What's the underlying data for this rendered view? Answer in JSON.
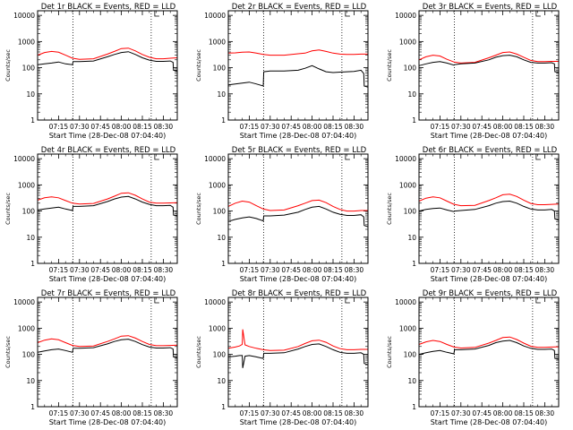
{
  "chart_data": {
    "type": "line",
    "common": {
      "ylabel": "Counts/sec",
      "xlabel": "Start Time (28-Dec-08 07:04:40)",
      "xticklabels": [
        "07:15",
        "07:30",
        "07:45",
        "08:00",
        "08:15",
        "08:30"
      ],
      "xticks_min": [
        15,
        30,
        45,
        60,
        75,
        90
      ],
      "xlim_min": [
        0,
        100
      ],
      "ylim": [
        1,
        15000
      ],
      "yscale": "log",
      "yticklabels": [
        "1",
        "10",
        "100",
        "1000",
        "10000"
      ],
      "series_colors": {
        "events": "#000000",
        "lld": "#ff0000"
      },
      "dotted_marker_min": [
        25.33,
        81.33
      ]
    },
    "panels": [
      {
        "title": "Det 1r BLACK = Events, RED = LLD",
        "series": [
          {
            "x": [
              0,
              5,
              10,
              15,
              20,
              25,
              25.4,
              30,
              40,
              50,
              55,
              60,
              65,
              70,
              75,
              80,
              85,
              90,
              95,
              97,
              97.3,
              100
            ],
            "values": [
              130,
              140,
              150,
              165,
              140,
              130,
              170,
              170,
              180,
              260,
              320,
              380,
              410,
              320,
              240,
              195,
              175,
              175,
              180,
              160,
              80,
              75
            ]
          },
          {
            "x": [
              0,
              5,
              10,
              15,
              20,
              25,
              30,
              40,
              50,
              55,
              60,
              65,
              70,
              75,
              80,
              85,
              90,
              95,
              100
            ],
            "values": [
              300,
              380,
              420,
              390,
              300,
              230,
              210,
              220,
              330,
              420,
              540,
              560,
              440,
              320,
              250,
              220,
              220,
              230,
              240
            ]
          }
        ]
      },
      {
        "title": "Det 2r BLACK = Events, RED = LLD",
        "series": [
          {
            "x": [
              0,
              5,
              10,
              15,
              20,
              25,
              25.4,
              30,
              40,
              50,
              55,
              60,
              65,
              70,
              75,
              80,
              85,
              90,
              95,
              97,
              97.3,
              100
            ],
            "values": [
              22,
              24,
              26,
              28,
              24,
              20,
              70,
              75,
              75,
              80,
              95,
              120,
              90,
              70,
              65,
              68,
              70,
              72,
              80,
              60,
              20,
              18
            ]
          },
          {
            "x": [
              0,
              5,
              10,
              15,
              20,
              25,
              30,
              40,
              50,
              55,
              60,
              65,
              70,
              75,
              80,
              85,
              90,
              95,
              100
            ],
            "values": [
              360,
              370,
              390,
              400,
              360,
              320,
              300,
              300,
              340,
              360,
              440,
              480,
              420,
              360,
              330,
              320,
              320,
              330,
              330
            ]
          }
        ]
      },
      {
        "title": "Det 3r BLACK = Events, RED = LLD",
        "series": [
          {
            "x": [
              0,
              5,
              10,
              15,
              20,
              25,
              25.4,
              30,
              40,
              50,
              55,
              60,
              65,
              70,
              75,
              80,
              85,
              90,
              95,
              97,
              97.3,
              100
            ],
            "values": [
              120,
              140,
              160,
              170,
              150,
              125,
              130,
              140,
              150,
              200,
              250,
              290,
              300,
              260,
              200,
              160,
              150,
              150,
              155,
              140,
              70,
              65
            ]
          },
          {
            "x": [
              0,
              5,
              10,
              15,
              20,
              25,
              30,
              40,
              50,
              55,
              60,
              65,
              70,
              75,
              80,
              85,
              90,
              95,
              100
            ],
            "values": [
              200,
              260,
              300,
              280,
              210,
              165,
              150,
              160,
              240,
              300,
              380,
              400,
              330,
              250,
              190,
              170,
              170,
              175,
              175
            ]
          }
        ]
      },
      {
        "title": "Det 4r BLACK = Events, RED = LLD",
        "series": [
          {
            "x": [
              0,
              5,
              10,
              15,
              20,
              25,
              25.4,
              30,
              40,
              50,
              55,
              60,
              65,
              70,
              75,
              80,
              85,
              90,
              95,
              97,
              97.3,
              100
            ],
            "values": [
              110,
              120,
              130,
              140,
              120,
              105,
              150,
              150,
              160,
              230,
              290,
              340,
              360,
              290,
              220,
              180,
              160,
              160,
              165,
              140,
              70,
              65
            ]
          },
          {
            "x": [
              0,
              5,
              10,
              15,
              20,
              25,
              30,
              40,
              50,
              55,
              60,
              65,
              70,
              75,
              80,
              85,
              90,
              95,
              100
            ],
            "values": [
              260,
              320,
              350,
              320,
              250,
              200,
              185,
              195,
              290,
              370,
              480,
              500,
              400,
              290,
              220,
              200,
              200,
              205,
              210
            ]
          }
        ]
      },
      {
        "title": "Det 5r BLACK = Events, RED = LLD",
        "series": [
          {
            "x": [
              0,
              5,
              10,
              15,
              20,
              25,
              25.4,
              30,
              40,
              50,
              55,
              60,
              65,
              70,
              75,
              80,
              85,
              90,
              95,
              97,
              97.3,
              100
            ],
            "values": [
              40,
              48,
              55,
              60,
              52,
              42,
              65,
              65,
              70,
              90,
              115,
              140,
              150,
              120,
              90,
              75,
              68,
              68,
              72,
              60,
              28,
              25
            ]
          },
          {
            "x": [
              0,
              5,
              10,
              15,
              20,
              25,
              30,
              40,
              50,
              55,
              60,
              65,
              70,
              75,
              80,
              85,
              90,
              95,
              100
            ],
            "values": [
              150,
              200,
              240,
              220,
              160,
              120,
              105,
              110,
              160,
              200,
              250,
              260,
              210,
              150,
              115,
              100,
              100,
              105,
              105
            ]
          }
        ]
      },
      {
        "title": "Det 6r BLACK = Events, RED = LLD",
        "series": [
          {
            "x": [
              0,
              5,
              10,
              15,
              20,
              25,
              25.4,
              30,
              40,
              50,
              55,
              60,
              65,
              70,
              75,
              80,
              85,
              90,
              95,
              97,
              97.3,
              100
            ],
            "values": [
              100,
              115,
              125,
              130,
              110,
              95,
              100,
              105,
              115,
              160,
              200,
              230,
              240,
              200,
              150,
              120,
              110,
              110,
              115,
              100,
              50,
              45
            ]
          },
          {
            "x": [
              0,
              5,
              10,
              15,
              20,
              25,
              30,
              40,
              50,
              55,
              60,
              65,
              70,
              75,
              80,
              85,
              90,
              95,
              100
            ],
            "values": [
              240,
              310,
              350,
              320,
              240,
              180,
              160,
              165,
              250,
              320,
              420,
              440,
              360,
              260,
              195,
              175,
              175,
              180,
              185
            ]
          }
        ]
      },
      {
        "title": "Det 7r BLACK = Events, RED = LLD",
        "series": [
          {
            "x": [
              0,
              5,
              10,
              15,
              20,
              25,
              25.4,
              30,
              40,
              50,
              55,
              60,
              65,
              70,
              75,
              80,
              85,
              90,
              95,
              97,
              97.3,
              100
            ],
            "values": [
              120,
              135,
              150,
              160,
              140,
              120,
              170,
              170,
              180,
              250,
              310,
              360,
              380,
              310,
              235,
              190,
              175,
              175,
              180,
              160,
              80,
              75
            ]
          },
          {
            "x": [
              0,
              5,
              10,
              15,
              20,
              25,
              30,
              40,
              50,
              55,
              60,
              65,
              70,
              75,
              80,
              85,
              90,
              95,
              100
            ],
            "values": [
              280,
              350,
              390,
              360,
              280,
              220,
              200,
              210,
              310,
              390,
              500,
              520,
              420,
              310,
              240,
              215,
              215,
              220,
              225
            ]
          }
        ]
      },
      {
        "title": "Det 8r BLACK = Events, RED = LLD",
        "series": [
          {
            "x": [
              0,
              5,
              8,
              10,
              10.3,
              12,
              15,
              20,
              25,
              25.4,
              30,
              40,
              50,
              55,
              60,
              65,
              70,
              75,
              80,
              85,
              90,
              95,
              97,
              97.3,
              100
            ],
            "values": [
              80,
              85,
              90,
              90,
              30,
              85,
              90,
              80,
              70,
              110,
              110,
              115,
              160,
              200,
              240,
              250,
              200,
              150,
              120,
              110,
              110,
              115,
              100,
              45,
              40
            ]
          },
          {
            "x": [
              0,
              5,
              8,
              10,
              10.3,
              12,
              15,
              20,
              25,
              30,
              40,
              50,
              55,
              60,
              65,
              70,
              75,
              80,
              85,
              90,
              95,
              100
            ],
            "values": [
              170,
              190,
              210,
              240,
              900,
              230,
              200,
              170,
              150,
              140,
              145,
              200,
              260,
              330,
              350,
              290,
              210,
              165,
              150,
              150,
              155,
              155
            ]
          }
        ]
      },
      {
        "title": "Det 9r BLACK = Events, RED = LLD",
        "series": [
          {
            "x": [
              0,
              5,
              10,
              15,
              20,
              25,
              25.4,
              30,
              40,
              50,
              55,
              60,
              65,
              70,
              75,
              80,
              85,
              90,
              95,
              97,
              97.3,
              100
            ],
            "values": [
              100,
              115,
              130,
              140,
              120,
              105,
              150,
              150,
              160,
              220,
              280,
              320,
              340,
              280,
              210,
              170,
              155,
              155,
              160,
              140,
              70,
              65
            ]
          },
          {
            "x": [
              0,
              5,
              10,
              15,
              20,
              25,
              30,
              40,
              50,
              55,
              60,
              65,
              70,
              75,
              80,
              85,
              90,
              95,
              100
            ],
            "values": [
              240,
              300,
              340,
              310,
              240,
              190,
              175,
              185,
              270,
              340,
              440,
              460,
              370,
              270,
              205,
              185,
              185,
              190,
              195
            ]
          }
        ]
      }
    ]
  }
}
